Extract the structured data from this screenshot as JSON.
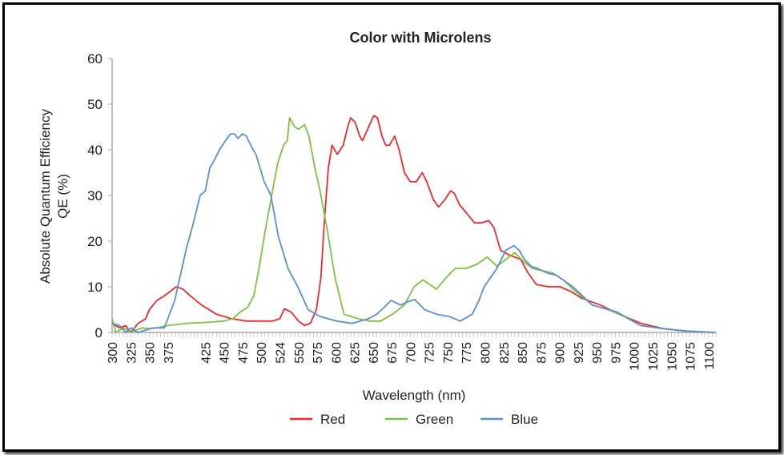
{
  "chart_data": {
    "type": "line",
    "title": "Color with Microlens",
    "xlabel": "Wavelength (nm)",
    "ylabel": [
      "Absolute Quantum Efficiency",
      "QE (%)"
    ],
    "xlim": [
      300,
      1110
    ],
    "ylim": [
      0,
      60
    ],
    "yticks": [
      0,
      10,
      20,
      30,
      40,
      50,
      60
    ],
    "xtick_labels": [
      "300",
      "325",
      "350",
      "375",
      "425",
      "450",
      "475",
      "500",
      "524",
      "550",
      "575",
      "600",
      "625",
      "650",
      "675",
      "700",
      "725",
      "750",
      "775",
      "800",
      "825",
      "850",
      "875",
      "900",
      "925",
      "950",
      "975",
      "1000",
      "1025",
      "1050",
      "1075",
      "1100"
    ],
    "grid": false,
    "legend": "bottom",
    "series": [
      {
        "name": "Red",
        "color": "#ee2a2a",
        "points": [
          [
            300,
            2
          ],
          [
            310,
            1
          ],
          [
            318,
            1.5
          ],
          [
            325,
            0
          ],
          [
            335,
            2
          ],
          [
            345,
            3
          ],
          [
            350,
            5
          ],
          [
            360,
            7
          ],
          [
            370,
            8
          ],
          [
            386,
            10
          ],
          [
            395,
            9.5
          ],
          [
            405,
            8
          ],
          [
            420,
            6
          ],
          [
            440,
            4
          ],
          [
            460,
            3
          ],
          [
            480,
            2.5
          ],
          [
            500,
            2.5
          ],
          [
            515,
            2.5
          ],
          [
            525,
            3
          ],
          [
            531,
            5.2
          ],
          [
            540,
            4.5
          ],
          [
            550,
            2.5
          ],
          [
            558,
            1.5
          ],
          [
            566,
            2
          ],
          [
            574,
            5
          ],
          [
            580,
            12
          ],
          [
            585,
            25
          ],
          [
            590,
            36
          ],
          [
            595,
            41
          ],
          [
            602,
            39
          ],
          [
            610,
            41
          ],
          [
            616,
            45
          ],
          [
            620,
            47
          ],
          [
            626,
            46
          ],
          [
            632,
            43
          ],
          [
            636,
            42
          ],
          [
            644,
            45
          ],
          [
            651,
            47.5
          ],
          [
            656,
            47
          ],
          [
            662,
            43
          ],
          [
            667,
            41
          ],
          [
            672,
            41
          ],
          [
            679,
            43
          ],
          [
            685,
            40
          ],
          [
            692,
            35
          ],
          [
            700,
            33
          ],
          [
            708,
            33
          ],
          [
            716,
            35
          ],
          [
            722,
            33
          ],
          [
            731,
            29
          ],
          [
            738,
            27.5
          ],
          [
            746,
            29
          ],
          [
            754,
            31
          ],
          [
            759,
            30.5
          ],
          [
            766,
            28
          ],
          [
            776,
            26
          ],
          [
            786,
            24
          ],
          [
            795,
            24
          ],
          [
            805,
            24.5
          ],
          [
            812,
            23
          ],
          [
            821,
            18
          ],
          [
            832,
            17
          ],
          [
            848,
            16
          ],
          [
            858,
            13
          ],
          [
            869,
            10.5
          ],
          [
            885,
            10
          ],
          [
            901,
            10
          ],
          [
            915,
            9
          ],
          [
            930,
            7.5
          ],
          [
            955,
            6
          ],
          [
            980,
            4
          ],
          [
            1009,
            2
          ],
          [
            1040,
            0.8
          ],
          [
            1070,
            0.3
          ],
          [
            1109,
            0
          ]
        ]
      },
      {
        "name": "Green",
        "color": "#7cc242",
        "points": [
          [
            300,
            3
          ],
          [
            305,
            0
          ],
          [
            315,
            1
          ],
          [
            325,
            0
          ],
          [
            340,
            1
          ],
          [
            350,
            0.8
          ],
          [
            360,
            1
          ],
          [
            375,
            1.5
          ],
          [
            400,
            2
          ],
          [
            425,
            2.2
          ],
          [
            450,
            2.5
          ],
          [
            462,
            3
          ],
          [
            472,
            4.5
          ],
          [
            482,
            5.5
          ],
          [
            490,
            8
          ],
          [
            497,
            14
          ],
          [
            505,
            22
          ],
          [
            514,
            30
          ],
          [
            522,
            37
          ],
          [
            530,
            41
          ],
          [
            535,
            42
          ],
          [
            538,
            47
          ],
          [
            545,
            45
          ],
          [
            550,
            44.5
          ],
          [
            558,
            45.5
          ],
          [
            564,
            43
          ],
          [
            572,
            36
          ],
          [
            579,
            31
          ],
          [
            589,
            22
          ],
          [
            599,
            12
          ],
          [
            611,
            4
          ],
          [
            630,
            3
          ],
          [
            645,
            2.5
          ],
          [
            660,
            2.5
          ],
          [
            676,
            4
          ],
          [
            692,
            6
          ],
          [
            705,
            10
          ],
          [
            717,
            11.5
          ],
          [
            726,
            10.5
          ],
          [
            735,
            9.5
          ],
          [
            748,
            12
          ],
          [
            760,
            14
          ],
          [
            775,
            14
          ],
          [
            790,
            15
          ],
          [
            803,
            16.5
          ],
          [
            816,
            14.5
          ],
          [
            828,
            16
          ],
          [
            840,
            17.5
          ],
          [
            852,
            15.5
          ],
          [
            864,
            14
          ],
          [
            878,
            13.5
          ],
          [
            891,
            13
          ],
          [
            905,
            11.5
          ],
          [
            918,
            9.5
          ],
          [
            944,
            6
          ],
          [
            965,
            5
          ],
          [
            987,
            3.5
          ],
          [
            1009,
            1.5
          ],
          [
            1040,
            0.8
          ],
          [
            1070,
            0.3
          ],
          [
            1109,
            0
          ]
        ]
      },
      {
        "name": "Blue",
        "color": "#5b8fd0",
        "points": [
          [
            300,
            2
          ],
          [
            310,
            1.5
          ],
          [
            318,
            0
          ],
          [
            326,
            1
          ],
          [
            334,
            0
          ],
          [
            345,
            0.5
          ],
          [
            355,
            1
          ],
          [
            370,
            1
          ],
          [
            384,
            7
          ],
          [
            399,
            18
          ],
          [
            409,
            24
          ],
          [
            418,
            30
          ],
          [
            425,
            31
          ],
          [
            431,
            36
          ],
          [
            438,
            38
          ],
          [
            444,
            40
          ],
          [
            452,
            42
          ],
          [
            459,
            43.5
          ],
          [
            464,
            43.5
          ],
          [
            469,
            42.5
          ],
          [
            475,
            43.5
          ],
          [
            480,
            43
          ],
          [
            489,
            40
          ],
          [
            493,
            39
          ],
          [
            504,
            33
          ],
          [
            513,
            30
          ],
          [
            523,
            21
          ],
          [
            536,
            14
          ],
          [
            549,
            10
          ],
          [
            556,
            7.5
          ],
          [
            563,
            5
          ],
          [
            579,
            3.5
          ],
          [
            601,
            2.5
          ],
          [
            622,
            2
          ],
          [
            644,
            3
          ],
          [
            655,
            4
          ],
          [
            665,
            5.5
          ],
          [
            674,
            7
          ],
          [
            687,
            6
          ],
          [
            698,
            6.8
          ],
          [
            706,
            7.2
          ],
          [
            719,
            5
          ],
          [
            735,
            4
          ],
          [
            752,
            3.5
          ],
          [
            767,
            2.5
          ],
          [
            783,
            4
          ],
          [
            792,
            7
          ],
          [
            799,
            10
          ],
          [
            816,
            14
          ],
          [
            828,
            18
          ],
          [
            839,
            19
          ],
          [
            846,
            18
          ],
          [
            853,
            16
          ],
          [
            862,
            14.5
          ],
          [
            871,
            14
          ],
          [
            884,
            13
          ],
          [
            896,
            12.5
          ],
          [
            918,
            10
          ],
          [
            944,
            6
          ],
          [
            977,
            4.5
          ],
          [
            1009,
            1.5
          ],
          [
            1040,
            0.8
          ],
          [
            1070,
            0.3
          ],
          [
            1109,
            0
          ]
        ]
      }
    ]
  }
}
